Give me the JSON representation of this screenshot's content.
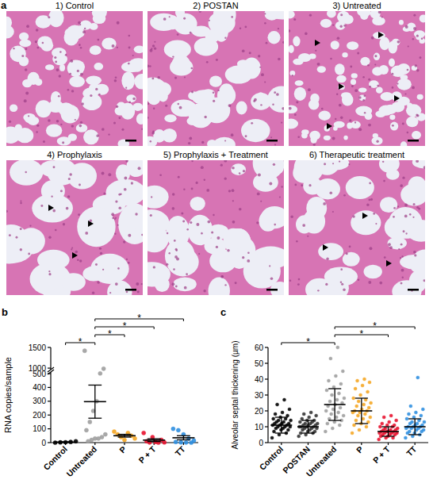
{
  "figure": {
    "panel": "a",
    "images": [
      "1) Control",
      "2) POSTAN",
      "3) Untreated",
      "4) Prophylaxis",
      "5) Prophylaxis + Treatment",
      "6) Therapeutic treatment"
    ]
  },
  "chart_data": [
    {
      "type": "strip",
      "panel": "b",
      "y_label": "RNA copies/sample",
      "categories": [
        "Control",
        "Untreated",
        "P",
        "P + T",
        "TT"
      ],
      "groups": [
        {
          "color": "#000000",
          "values": [
            0,
            2,
            3,
            5,
            10
          ],
          "mean": 4,
          "error": 2
        },
        {
          "color": "#9e9e9e",
          "values": [
            1420,
            950,
            520,
            300,
            230,
            150,
            90,
            60,
            40,
            30,
            30,
            20,
            10
          ],
          "mean": 297,
          "error": 120
        },
        {
          "color": "#f5a623",
          "values": [
            80,
            70,
            60,
            50,
            40,
            30,
            20
          ],
          "mean": 50,
          "error": 10
        },
        {
          "color": "#e8112d",
          "values": [
            70,
            40,
            20,
            10,
            5,
            2,
            1,
            0
          ],
          "mean": 18,
          "error": 10
        },
        {
          "color": "#2f8fe0",
          "values": [
            100,
            90,
            60,
            30,
            15,
            5,
            2,
            1,
            0
          ],
          "mean": 35,
          "error": 15
        }
      ],
      "comparisons": [
        {
          "pair": [
            "Control",
            "Untreated"
          ],
          "label": "*"
        },
        {
          "pair": [
            "Untreated",
            "P"
          ],
          "label": "*"
        },
        {
          "pair": [
            "Untreated",
            "P + T"
          ],
          "label": "*"
        },
        {
          "pair": [
            "Untreated",
            "TT"
          ],
          "label": "*"
        }
      ],
      "ylim": [
        0,
        1500
      ],
      "yticks": [
        0,
        100,
        200,
        300,
        400,
        500,
        1000,
        1500
      ],
      "grid": false
    },
    {
      "type": "strip",
      "panel": "c",
      "y_label": "Alveolar septal thickening (µm)",
      "categories": [
        "Control",
        "POSTAN",
        "Untreated",
        "P",
        "P + T",
        "TT"
      ],
      "groups": [
        {
          "color": "#000000",
          "values": [
            3,
            5,
            6,
            7,
            8,
            8,
            9,
            9,
            10,
            10,
            10,
            11,
            11,
            11,
            12,
            12,
            12,
            13,
            13,
            14,
            14,
            15,
            15,
            16,
            17,
            18,
            19,
            21,
            24,
            27
          ],
          "mean": 11,
          "error": 5
        },
        {
          "color": "#333333",
          "values": [
            4,
            5,
            6,
            6,
            7,
            7,
            8,
            8,
            9,
            9,
            9,
            10,
            10,
            10,
            10,
            11,
            11,
            11,
            12,
            12,
            12,
            13,
            13,
            14,
            14,
            15,
            16,
            17,
            18,
            19
          ],
          "mean": 10,
          "error": 4
        },
        {
          "color": "#9e9e9e",
          "values": [
            7,
            9,
            11,
            12,
            13,
            14,
            15,
            16,
            17,
            18,
            19,
            20,
            21,
            22,
            23,
            24,
            25,
            26,
            27,
            28,
            30,
            31,
            33,
            35,
            37,
            39,
            42,
            45,
            53,
            60
          ],
          "mean": 24,
          "error": 10
        },
        {
          "color": "#f5a623",
          "values": [
            6,
            8,
            10,
            11,
            12,
            13,
            14,
            15,
            16,
            17,
            18,
            19,
            19,
            20,
            20,
            21,
            22,
            23,
            24,
            25,
            26,
            27,
            28,
            30,
            32,
            34,
            36,
            38,
            39,
            40
          ],
          "mean": 20,
          "error": 8
        },
        {
          "color": "#e8112d",
          "values": [
            2,
            3,
            3,
            4,
            4,
            5,
            5,
            5,
            6,
            6,
            6,
            6,
            7,
            7,
            7,
            7,
            8,
            8,
            8,
            9,
            9,
            10,
            10,
            11,
            11,
            12,
            13,
            14,
            16,
            17
          ],
          "mean": 7,
          "error": 3
        },
        {
          "color": "#2f8fe0",
          "values": [
            3,
            4,
            5,
            6,
            6,
            7,
            7,
            8,
            8,
            9,
            9,
            9,
            10,
            10,
            10,
            11,
            11,
            12,
            12,
            13,
            13,
            14,
            15,
            16,
            17,
            18,
            19,
            21,
            23,
            41
          ],
          "mean": 10,
          "error": 5
        }
      ],
      "comparisons": [
        {
          "pair": [
            "Control",
            "Untreated"
          ],
          "label": "*"
        },
        {
          "pair": [
            "Untreated",
            "P + T"
          ],
          "label": "*"
        },
        {
          "pair": [
            "Untreated",
            "TT"
          ],
          "label": "*"
        }
      ],
      "ylim": [
        0,
        60
      ],
      "yticks": [
        0,
        10,
        20,
        30,
        40,
        50,
        60
      ],
      "grid": false
    }
  ]
}
